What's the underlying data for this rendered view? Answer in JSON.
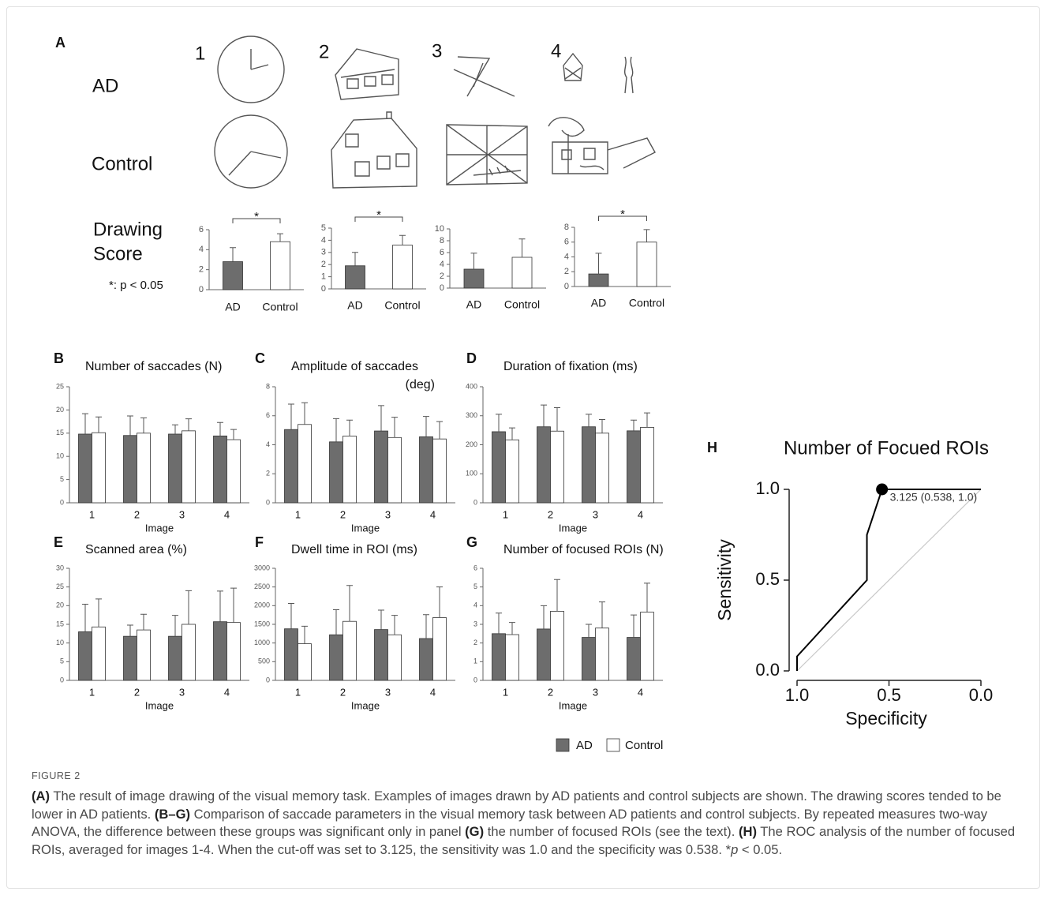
{
  "panel_a": {
    "label": "A",
    "columns": [
      "1",
      "2",
      "3",
      "4"
    ],
    "rows": [
      "AD",
      "Control"
    ],
    "score_label": [
      "Drawing",
      "Score"
    ],
    "note": "*: p < 0.05"
  },
  "chart_data": [
    {
      "type": "bar",
      "categories": [
        "AD",
        "Control"
      ],
      "values": [
        2.8,
        4.8
      ],
      "errors": [
        1.4,
        0.8
      ],
      "colors": [
        "#6d6d6d",
        "#ffffff"
      ],
      "ylim": [
        0,
        6
      ],
      "yticks": [
        0,
        2,
        4,
        6
      ],
      "significance": "*"
    },
    {
      "type": "bar",
      "categories": [
        "AD",
        "Control"
      ],
      "values": [
        1.9,
        3.6
      ],
      "errors": [
        1.1,
        0.8
      ],
      "colors": [
        "#6d6d6d",
        "#ffffff"
      ],
      "ylim": [
        0,
        5
      ],
      "yticks": [
        0,
        1,
        2,
        3,
        4,
        5
      ],
      "significance": "*"
    },
    {
      "type": "bar",
      "categories": [
        "AD",
        "Control"
      ],
      "values": [
        3.2,
        5.2
      ],
      "errors": [
        2.7,
        3.1
      ],
      "colors": [
        "#6d6d6d",
        "#ffffff"
      ],
      "ylim": [
        0,
        10
      ],
      "yticks": [
        0,
        2,
        4,
        6,
        8,
        10
      ]
    },
    {
      "type": "bar",
      "categories": [
        "AD",
        "Control"
      ],
      "values": [
        1.7,
        6.0
      ],
      "errors": [
        2.8,
        1.7
      ],
      "colors": [
        "#6d6d6d",
        "#ffffff"
      ],
      "ylim": [
        0,
        8
      ],
      "yticks": [
        0,
        2,
        4,
        6,
        8
      ],
      "significance": "*"
    },
    {
      "type": "bar",
      "panel": "B",
      "title": "Number of saccades (N)",
      "x_label": "Image",
      "categories": [
        "1",
        "2",
        "3",
        "4"
      ],
      "series": [
        {
          "name": "AD",
          "color": "#6d6d6d",
          "values": [
            14.8,
            14.5,
            14.8,
            14.4
          ],
          "errors": [
            4.4,
            4.2,
            2.0,
            2.9
          ]
        },
        {
          "name": "Control",
          "color": "#ffffff",
          "values": [
            15.1,
            15.0,
            15.5,
            13.6
          ],
          "errors": [
            3.4,
            3.3,
            2.6,
            2.2
          ]
        }
      ],
      "ylim": [
        0,
        25
      ],
      "yticks": [
        0,
        5,
        10,
        15,
        20,
        25
      ]
    },
    {
      "type": "bar",
      "panel": "C",
      "title": [
        "Amplitude of saccades",
        "(deg)"
      ],
      "x_label": "Image",
      "categories": [
        "1",
        "2",
        "3",
        "4"
      ],
      "series": [
        {
          "name": "AD",
          "color": "#6d6d6d",
          "values": [
            5.05,
            4.2,
            4.95,
            4.55
          ],
          "errors": [
            1.75,
            1.6,
            1.75,
            1.4
          ]
        },
        {
          "name": "Control",
          "color": "#ffffff",
          "values": [
            5.4,
            4.6,
            4.5,
            4.4
          ],
          "errors": [
            1.5,
            1.1,
            1.4,
            1.2
          ]
        }
      ],
      "ylim": [
        0,
        8
      ],
      "yticks": [
        0,
        2,
        4,
        6,
        8
      ]
    },
    {
      "type": "bar",
      "panel": "D",
      "title": "Duration of fixation (ms)",
      "x_label": "Image",
      "categories": [
        "1",
        "2",
        "3",
        "4"
      ],
      "series": [
        {
          "name": "AD",
          "color": "#6d6d6d",
          "values": [
            245,
            262,
            262,
            248
          ],
          "errors": [
            60,
            75,
            43,
            37
          ]
        },
        {
          "name": "Control",
          "color": "#ffffff",
          "values": [
            217,
            247,
            240,
            260
          ],
          "errors": [
            41,
            81,
            47,
            50
          ]
        }
      ],
      "ylim": [
        0,
        400
      ],
      "yticks": [
        0,
        100,
        200,
        300,
        400
      ]
    },
    {
      "type": "bar",
      "panel": "E",
      "title": "Scanned area (%)",
      "x_label": "Image",
      "categories": [
        "1",
        "2",
        "3",
        "4"
      ],
      "series": [
        {
          "name": "AD",
          "color": "#6d6d6d",
          "values": [
            13,
            11.8,
            11.8,
            15.7
          ],
          "errors": [
            7.4,
            3.0,
            5.6,
            8.2
          ]
        },
        {
          "name": "Control",
          "color": "#ffffff",
          "values": [
            14.3,
            13.5,
            15,
            15.5
          ],
          "errors": [
            7.5,
            4.2,
            9.0,
            9.2
          ]
        }
      ],
      "ylim": [
        0,
        30
      ],
      "yticks": [
        0,
        5,
        10,
        15,
        20,
        25,
        30
      ]
    },
    {
      "type": "bar",
      "panel": "F",
      "title": "Dwell time in ROI (ms)",
      "x_label": "Image",
      "categories": [
        "1",
        "2",
        "3",
        "4"
      ],
      "series": [
        {
          "name": "AD",
          "color": "#6d6d6d",
          "values": [
            1380,
            1220,
            1360,
            1120
          ],
          "errors": [
            680,
            670,
            520,
            640
          ]
        },
        {
          "name": "Control",
          "color": "#ffffff",
          "values": [
            980,
            1580,
            1220,
            1680
          ],
          "errors": [
            470,
            960,
            520,
            820
          ]
        }
      ],
      "ylim": [
        0,
        3000
      ],
      "yticks": [
        0,
        500,
        1000,
        1500,
        2000,
        2500,
        3000
      ]
    },
    {
      "type": "bar",
      "panel": "G",
      "title": "Number of focused ROIs (N)",
      "x_label": "Image",
      "categories": [
        "1",
        "2",
        "3",
        "4"
      ],
      "series": [
        {
          "name": "AD",
          "color": "#6d6d6d",
          "values": [
            2.5,
            2.75,
            2.3,
            2.3
          ],
          "errors": [
            1.1,
            1.25,
            0.7,
            1.2
          ]
        },
        {
          "name": "Control",
          "color": "#ffffff",
          "values": [
            2.45,
            3.7,
            2.8,
            3.65
          ],
          "errors": [
            0.65,
            1.7,
            1.4,
            1.55
          ]
        }
      ],
      "ylim": [
        0,
        6
      ],
      "yticks": [
        0,
        1,
        2,
        3,
        4,
        5,
        6
      ]
    },
    {
      "type": "line",
      "panel": "H",
      "title": "Number of Focued ROIs",
      "x_label": "Specificity",
      "y_label": "Sensitivity",
      "x": [
        1.0,
        1.0,
        0.62,
        0.62,
        0.538,
        0.0
      ],
      "values": [
        0.0,
        0.08,
        0.5,
        0.75,
        1.0,
        1.0
      ],
      "color": "#000000",
      "xlim": [
        1.0,
        0.0
      ],
      "ylim": [
        0.0,
        1.0
      ],
      "xticks": [
        {
          "value": 1.0,
          "label": "1.0"
        },
        {
          "value": 0.5,
          "label": "0.5"
        },
        {
          "value": 0.0,
          "label": "0.0"
        }
      ],
      "yticks": [
        {
          "value": 0.0,
          "label": "0.0"
        },
        {
          "value": 0.5,
          "label": "0.5"
        },
        {
          "value": 1.0,
          "label": "1.0"
        }
      ],
      "diagonal": true,
      "point": {
        "x": 0.538,
        "y": 1.0,
        "label": "3.125 (0.538,  1.0)"
      }
    }
  ],
  "caption": {
    "label": "FIGURE 2",
    "segments": [
      {
        "text": "(A)",
        "bold": true
      },
      {
        "text": " The result of image drawing of the visual memory task. Examples of images drawn by AD patients and control subjects are shown. The drawing scores tended to be lower in AD patients. "
      },
      {
        "text": "(B–G)",
        "bold": true
      },
      {
        "text": " Comparison of saccade parameters in the visual memory task between AD patients and control subjects. By repeated measures two-way ANOVA, the difference between these groups was significant only in panel "
      },
      {
        "text": "(G)",
        "bold": true
      },
      {
        "text": " the number of focused ROIs (see the text). "
      },
      {
        "text": "(H)",
        "bold": true
      },
      {
        "text": " The ROC analysis of the number of focused ROIs, averaged for images 1-4. When the cut-off was set to 3.125, the sensitivity was 1.0 and the specificity was 0.538. *"
      },
      {
        "text": "p",
        "italic": true
      },
      {
        "text": " < 0.05."
      }
    ]
  }
}
